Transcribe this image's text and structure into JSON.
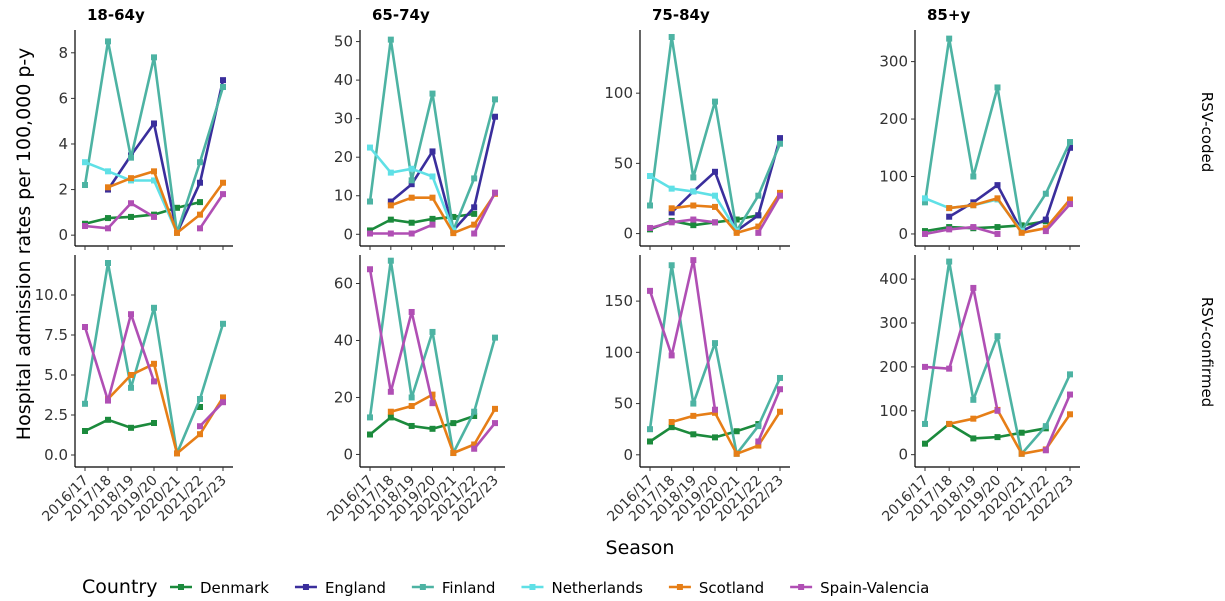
{
  "chart_data": {
    "type": "line",
    "ylabel": "Hospital admission rates per 100,000 p-y",
    "xlabel": "Season",
    "categories": [
      "2016/17",
      "2017/18",
      "2018/19",
      "2019/20",
      "2020/21",
      "2021/22",
      "2022/23"
    ],
    "columns": [
      "18-64y",
      "65-74y",
      "75-84y",
      "85+y"
    ],
    "rows": [
      "RSV-coded",
      "RSV-confirmed"
    ],
    "legend": {
      "title": "Country",
      "position": "bottom",
      "entries": [
        {
          "name": "Denmark",
          "color": "#1b8a3c"
        },
        {
          "name": "England",
          "color": "#3a2e9c"
        },
        {
          "name": "Finland",
          "color": "#4db3a3"
        },
        {
          "name": "Netherlands",
          "color": "#5fe0e6"
        },
        {
          "name": "Scotland",
          "color": "#e67e17"
        },
        {
          "name": "Spain-Valencia",
          "color": "#b04fb4"
        }
      ]
    },
    "panels": [
      {
        "col": 0,
        "row": 0,
        "title": "18-64y",
        "ylim": [
          -0.3,
          9
        ],
        "yticks": [
          0,
          2,
          4,
          6,
          8
        ],
        "series": [
          {
            "name": "Denmark",
            "values": [
              0.5,
              0.75,
              0.8,
              0.9,
              1.2,
              1.45,
              null
            ]
          },
          {
            "name": "England",
            "values": [
              null,
              2.0,
              3.5,
              4.9,
              0.1,
              2.3,
              6.8
            ]
          },
          {
            "name": "Finland",
            "values": [
              2.2,
              8.5,
              3.4,
              7.8,
              0.1,
              3.2,
              6.5
            ]
          },
          {
            "name": "Netherlands",
            "values": [
              3.2,
              2.8,
              2.4,
              2.4,
              0.1,
              null,
              null
            ]
          },
          {
            "name": "Scotland",
            "values": [
              null,
              2.1,
              2.5,
              2.8,
              0.1,
              0.9,
              2.3
            ]
          },
          {
            "name": "Spain-Valencia",
            "values": [
              0.4,
              0.3,
              1.4,
              0.8,
              null,
              0.3,
              1.8
            ]
          }
        ]
      },
      {
        "col": 1,
        "row": 0,
        "title": "65-74y",
        "ylim": [
          -2,
          53
        ],
        "yticks": [
          0,
          10,
          20,
          30,
          40,
          50
        ],
        "series": [
          {
            "name": "Denmark",
            "values": [
              1.0,
              3.8,
              3.0,
              4.0,
              4.5,
              5.3,
              null
            ]
          },
          {
            "name": "England",
            "values": [
              null,
              8.5,
              13.0,
              21.5,
              1.0,
              7.0,
              30.5
            ]
          },
          {
            "name": "Finland",
            "values": [
              8.5,
              50.5,
              14.0,
              36.5,
              1.0,
              14.5,
              35.0
            ]
          },
          {
            "name": "Netherlands",
            "values": [
              22.5,
              16.0,
              17.0,
              15.0,
              1.0,
              null,
              null
            ]
          },
          {
            "name": "Scotland",
            "values": [
              null,
              7.5,
              9.5,
              9.5,
              0.3,
              2.5,
              10.5
            ]
          },
          {
            "name": "Spain-Valencia",
            "values": [
              0.2,
              0.2,
              0.2,
              2.5,
              null,
              0.2,
              10.8
            ]
          }
        ]
      },
      {
        "col": 2,
        "row": 0,
        "title": "75-84y",
        "ylim": [
          -6,
          145
        ],
        "yticks": [
          0,
          50,
          100
        ],
        "series": [
          {
            "name": "Denmark",
            "values": [
              3.0,
              9.0,
              6.0,
              8.0,
              10.0,
              13.0,
              null
            ]
          },
          {
            "name": "England",
            "values": [
              null,
              15.0,
              30.0,
              44.0,
              2.0,
              13.0,
              68.0
            ]
          },
          {
            "name": "Finland",
            "values": [
              20.0,
              140.0,
              40.0,
              94.0,
              2.0,
              27.0,
              64.0
            ]
          },
          {
            "name": "Netherlands",
            "values": [
              41.0,
              32.0,
              30.0,
              27.0,
              2.0,
              null,
              null
            ]
          },
          {
            "name": "Scotland",
            "values": [
              null,
              18.0,
              20.0,
              19.0,
              0.5,
              5.0,
              29.0
            ]
          },
          {
            "name": "Spain-Valencia",
            "values": [
              4.0,
              8.0,
              10.0,
              8.0,
              null,
              0.5,
              27.0
            ]
          }
        ]
      },
      {
        "col": 3,
        "row": 0,
        "title": "85+y",
        "ylim": [
          -14,
          355
        ],
        "yticks": [
          0,
          100,
          200,
          300
        ],
        "series": [
          {
            "name": "Denmark",
            "values": [
              5.0,
              12.0,
              10.0,
              12.0,
              15.0,
              22.0,
              null
            ]
          },
          {
            "name": "England",
            "values": [
              null,
              30.0,
              55.0,
              85.0,
              5.0,
              25.0,
              150.0
            ]
          },
          {
            "name": "Finland",
            "values": [
              55.0,
              340.0,
              100.0,
              255.0,
              5.0,
              70.0,
              160.0
            ]
          },
          {
            "name": "Netherlands",
            "values": [
              62.0,
              45.0,
              50.0,
              60.0,
              5.0,
              null,
              null
            ]
          },
          {
            "name": "Scotland",
            "values": [
              null,
              45.0,
              50.0,
              62.0,
              2.0,
              10.0,
              60.0
            ]
          },
          {
            "name": "Spain-Valencia",
            "values": [
              0.0,
              8.0,
              12.0,
              0.0,
              null,
              5.0,
              52.0
            ]
          }
        ]
      },
      {
        "col": 0,
        "row": 1,
        "title": "",
        "ylim": [
          -0.5,
          12.5
        ],
        "yticks": [
          0.0,
          2.5,
          5.0,
          7.5,
          10.0
        ],
        "yticklabels": [
          "0.0",
          "2.5",
          "5.0",
          "7.5",
          "10.0"
        ],
        "series": [
          {
            "name": "Denmark",
            "values": [
              1.5,
              2.2,
              1.7,
              2.0,
              null,
              3.0,
              null
            ]
          },
          {
            "name": "Finland",
            "values": [
              3.2,
              12.0,
              4.2,
              9.2,
              0.1,
              3.5,
              8.2
            ]
          },
          {
            "name": "Scotland",
            "values": [
              null,
              3.5,
              5.0,
              5.7,
              0.1,
              1.3,
              3.6
            ]
          },
          {
            "name": "Spain-Valencia",
            "values": [
              8.0,
              3.4,
              8.8,
              4.6,
              null,
              1.8,
              3.3
            ]
          }
        ]
      },
      {
        "col": 1,
        "row": 1,
        "title": "",
        "ylim": [
          -3,
          70
        ],
        "yticks": [
          0,
          20,
          40,
          60
        ],
        "series": [
          {
            "name": "Denmark",
            "values": [
              7.0,
              13.0,
              10.0,
              9.0,
              11.0,
              13.5,
              null
            ]
          },
          {
            "name": "Finland",
            "values": [
              13.0,
              68.0,
              20.0,
              43.0,
              0.5,
              15.0,
              41.0
            ]
          },
          {
            "name": "Scotland",
            "values": [
              null,
              15.0,
              17.0,
              21.0,
              0.5,
              3.5,
              16.0
            ]
          },
          {
            "name": "Spain-Valencia",
            "values": [
              65.0,
              22.0,
              50.0,
              18.0,
              null,
              2.0,
              11.0
            ]
          }
        ]
      },
      {
        "col": 2,
        "row": 1,
        "title": "",
        "ylim": [
          -8,
          195
        ],
        "yticks": [
          0,
          50,
          100,
          150
        ],
        "series": [
          {
            "name": "Denmark",
            "values": [
              13.0,
              27.0,
              20.0,
              17.0,
              23.0,
              30.0,
              null
            ]
          },
          {
            "name": "Finland",
            "values": [
              25.0,
              185.0,
              50.0,
              109.0,
              1.0,
              28.0,
              75.0
            ]
          },
          {
            "name": "Scotland",
            "values": [
              null,
              32.0,
              38.0,
              41.0,
              1.0,
              9.0,
              42.0
            ]
          },
          {
            "name": "Spain-Valencia",
            "values": [
              160.0,
              97.0,
              190.0,
              44.0,
              null,
              13.0,
              64.0
            ]
          }
        ]
      },
      {
        "col": 3,
        "row": 1,
        "title": "",
        "ylim": [
          -19,
          455
        ],
        "yticks": [
          0,
          100,
          200,
          300,
          400
        ],
        "series": [
          {
            "name": "Denmark",
            "values": [
              25.0,
              70.0,
              37.0,
              40.0,
              50.0,
              60.0,
              null
            ]
          },
          {
            "name": "Finland",
            "values": [
              70.0,
              440.0,
              125.0,
              270.0,
              2.0,
              65.0,
              183.0
            ]
          },
          {
            "name": "Scotland",
            "values": [
              null,
              70.0,
              82.0,
              102.0,
              2.0,
              12.0,
              92.0
            ]
          },
          {
            "name": "Spain-Valencia",
            "values": [
              200.0,
              196.0,
              380.0,
              100.0,
              null,
              10.0,
              137.0
            ]
          }
        ]
      }
    ]
  }
}
